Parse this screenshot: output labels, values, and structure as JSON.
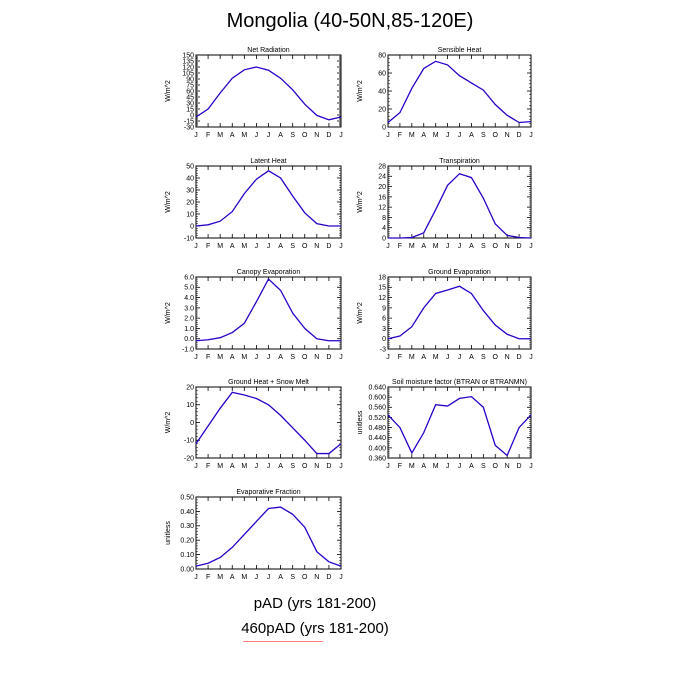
{
  "title": "Mongolia (40-50N,85-120E)",
  "month_labels": [
    "J",
    "F",
    "M",
    "A",
    "M",
    "J",
    "J",
    "A",
    "S",
    "O",
    "N",
    "D",
    "J"
  ],
  "legend": {
    "series_1": "pAD (yrs 181-200)",
    "series_2": "460pAD (yrs 181-200)",
    "series_2_color": "#ff8080"
  },
  "line_color": "#2a00c8",
  "chart_data": [
    {
      "type": "line",
      "title": "Net Radiation",
      "ylabel": "W/m^2",
      "ylim": [
        -30,
        150
      ],
      "yticks": [
        -30,
        -15,
        0,
        15,
        30,
        45,
        60,
        75,
        90,
        105,
        120,
        135,
        150
      ],
      "yticklabels": [
        "-30",
        "-15",
        "0",
        "15",
        "30",
        "45",
        "60",
        "75",
        "90",
        "105",
        "120",
        "135",
        "150"
      ],
      "x": [
        0,
        1,
        2,
        3,
        4,
        5,
        6,
        7,
        8,
        9,
        10,
        11,
        12
      ],
      "values": [
        -5,
        15,
        55,
        92,
        113,
        120,
        112,
        92,
        63,
        27,
        -1,
        -12,
        -5
      ]
    },
    {
      "type": "line",
      "title": "Sensible Heat",
      "ylabel": "W/m^2",
      "ylim": [
        0,
        80
      ],
      "yticks": [
        0,
        20,
        40,
        60,
        80
      ],
      "yticklabels": [
        "0",
        "20",
        "40",
        "60",
        "80"
      ],
      "x": [
        0,
        1,
        2,
        3,
        4,
        5,
        6,
        7,
        8,
        9,
        10,
        11,
        12
      ],
      "values": [
        5,
        16,
        43,
        65,
        73,
        69,
        57,
        49,
        41,
        25,
        13,
        5,
        6
      ]
    },
    {
      "type": "line",
      "title": "Latent Heat",
      "ylabel": "W/m^2",
      "ylim": [
        -10,
        50
      ],
      "yticks": [
        -10,
        0,
        10,
        20,
        30,
        40,
        50
      ],
      "yticklabels": [
        "-10",
        "0",
        "10",
        "20",
        "30",
        "40",
        "50"
      ],
      "x": [
        0,
        1,
        2,
        3,
        4,
        5,
        6,
        7,
        8,
        9,
        10,
        11,
        12
      ],
      "values": [
        0,
        1,
        4,
        12,
        27,
        39,
        46,
        40,
        25,
        11,
        2,
        0,
        0
      ]
    },
    {
      "type": "line",
      "title": "Transpiration",
      "ylabel": "W/m^2",
      "ylim": [
        0,
        28
      ],
      "yticks": [
        0,
        4,
        8,
        12,
        16,
        20,
        24,
        28
      ],
      "yticklabels": [
        "0",
        "4",
        "8",
        "12",
        "16",
        "20",
        "24",
        "28"
      ],
      "x": [
        0,
        1,
        2,
        3,
        4,
        5,
        6,
        7,
        8,
        9,
        10,
        11,
        12
      ],
      "values": [
        0,
        0,
        0.2,
        2,
        11,
        20.5,
        25,
        23.5,
        15.5,
        5.5,
        1,
        0.2,
        0
      ]
    },
    {
      "type": "line",
      "title": "Canopy Evaporation",
      "ylabel": "W/m^2",
      "ylim": [
        -1.0,
        6.0
      ],
      "yticks": [
        -1.0,
        0.0,
        1.0,
        2.0,
        3.0,
        4.0,
        5.0,
        6.0
      ],
      "yticklabels": [
        "-1.0",
        "0.0",
        "1.0",
        "2.0",
        "3.0",
        "4.0",
        "5.0",
        "6.0"
      ],
      "x": [
        0,
        1,
        2,
        3,
        4,
        5,
        6,
        7,
        8,
        9,
        10,
        11,
        12
      ],
      "values": [
        -0.2,
        -0.1,
        0.1,
        0.6,
        1.5,
        3.6,
        5.8,
        4.7,
        2.5,
        1.0,
        0.0,
        -0.2,
        -0.2
      ]
    },
    {
      "type": "line",
      "title": "Ground Evaporation",
      "ylabel": "W/m^2",
      "ylim": [
        -3,
        18
      ],
      "yticks": [
        -3,
        0,
        3,
        6,
        9,
        12,
        15,
        18
      ],
      "yticklabels": [
        "-3",
        "0",
        "3",
        "6",
        "9",
        "12",
        "15",
        "18"
      ],
      "x": [
        0,
        1,
        2,
        3,
        4,
        5,
        6,
        7,
        8,
        9,
        10,
        11,
        12
      ],
      "values": [
        0,
        0.8,
        3.5,
        9,
        13.2,
        14.2,
        15.3,
        13.2,
        8.2,
        4,
        1.3,
        0,
        0
      ]
    },
    {
      "type": "line",
      "title": "Ground Heat + Snow Melt",
      "ylabel": "W/m^2",
      "ylim": [
        -20,
        20
      ],
      "yticks": [
        -20,
        -10,
        0,
        10,
        20
      ],
      "yticklabels": [
        "-20",
        "-10",
        "0",
        "10",
        "20"
      ],
      "x": [
        0,
        1,
        2,
        3,
        4,
        5,
        6,
        7,
        8,
        9,
        10,
        11,
        12
      ],
      "values": [
        -12,
        -2,
        8,
        17,
        15.5,
        13.5,
        10,
        4,
        -3,
        -10,
        -17.5,
        -17.5,
        -12
      ]
    },
    {
      "type": "line",
      "title": "Soil moisture factor (BTRAN or BTRANMN)",
      "ylabel": "unitless",
      "ylim": [
        0.36,
        0.64
      ],
      "yticks": [
        0.36,
        0.4,
        0.44,
        0.48,
        0.52,
        0.56,
        0.6,
        0.64
      ],
      "yticklabels": [
        "0.360",
        "0.400",
        "0.440",
        "0.480",
        "0.520",
        "0.560",
        "0.600",
        "0.640"
      ],
      "x": [
        0,
        1,
        2,
        3,
        4,
        5,
        6,
        7,
        8,
        9,
        10,
        11,
        12
      ],
      "values": [
        0.53,
        0.48,
        0.38,
        0.46,
        0.57,
        0.565,
        0.595,
        0.602,
        0.56,
        0.41,
        0.37,
        0.48,
        0.53
      ]
    },
    {
      "type": "line",
      "title": "Evaporative Fraction",
      "ylabel": "unitless",
      "ylim": [
        0.0,
        0.5
      ],
      "yticks": [
        0.0,
        0.1,
        0.2,
        0.3,
        0.4,
        0.5
      ],
      "yticklabels": [
        "0.00",
        "0.10",
        "0.20",
        "0.30",
        "0.40",
        "0.50"
      ],
      "x": [
        0,
        1,
        2,
        3,
        4,
        5,
        6,
        7,
        8,
        9,
        10,
        11,
        12
      ],
      "values": [
        0.02,
        0.04,
        0.08,
        0.15,
        0.24,
        0.33,
        0.42,
        0.43,
        0.38,
        0.29,
        0.12,
        0.05,
        0.02
      ]
    }
  ]
}
